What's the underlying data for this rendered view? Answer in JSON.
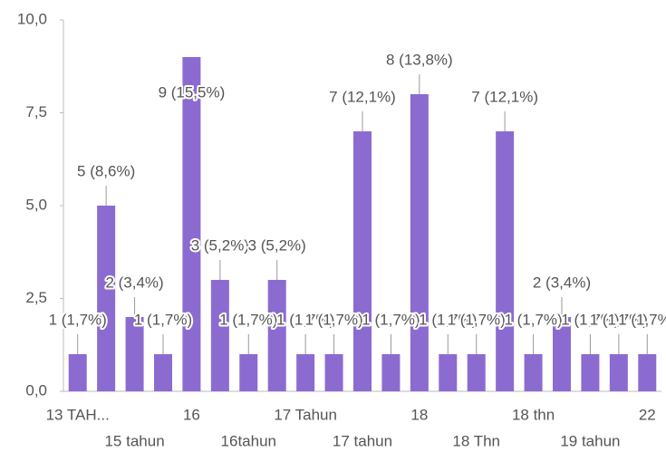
{
  "chart_data": {
    "type": "bar",
    "categories": [
      "13 TAH...",
      null,
      "15 tahun",
      null,
      "16",
      null,
      "16tahun",
      null,
      "17 Tahun",
      null,
      "17 tahun",
      null,
      "18",
      null,
      "18 Thn",
      null,
      "18 thn",
      null,
      "19 tahun",
      null,
      "22"
    ],
    "values": [
      1,
      5,
      2,
      1,
      9,
      3,
      1,
      3,
      1,
      1,
      7,
      1,
      8,
      1,
      1,
      7,
      1,
      2,
      1,
      1,
      1
    ],
    "value_labels": [
      "1 (1,7%)",
      "5 (8,6%)",
      "2 (3,4%)",
      "1 (1,7%)",
      "9 (15,5%)",
      "3 (5,2%)",
      "1 (1,7%)",
      "3 (5,2%)",
      "1 (1,7%)",
      "1 (1,7%)",
      "7 (12,1%)",
      "1 (1,7%)",
      "8 (13,8%)",
      "1 (1,7%)",
      "1 (1,7%)",
      "7 (12,1%)",
      "1 (1,7%)",
      "2 (3,4%)",
      "1 (1,7%)",
      "1 (1,7%)",
      "1 (1,7%)"
    ],
    "color": "#8c6bd1",
    "ylim": [
      0,
      10
    ],
    "yticks": [
      {
        "value": 0,
        "label": "0,0"
      },
      {
        "value": 2.5,
        "label": "2,5"
      },
      {
        "value": 5,
        "label": "5,0"
      },
      {
        "value": 7.5,
        "label": "7,5"
      },
      {
        "value": 10,
        "label": "10,0"
      }
    ]
  }
}
